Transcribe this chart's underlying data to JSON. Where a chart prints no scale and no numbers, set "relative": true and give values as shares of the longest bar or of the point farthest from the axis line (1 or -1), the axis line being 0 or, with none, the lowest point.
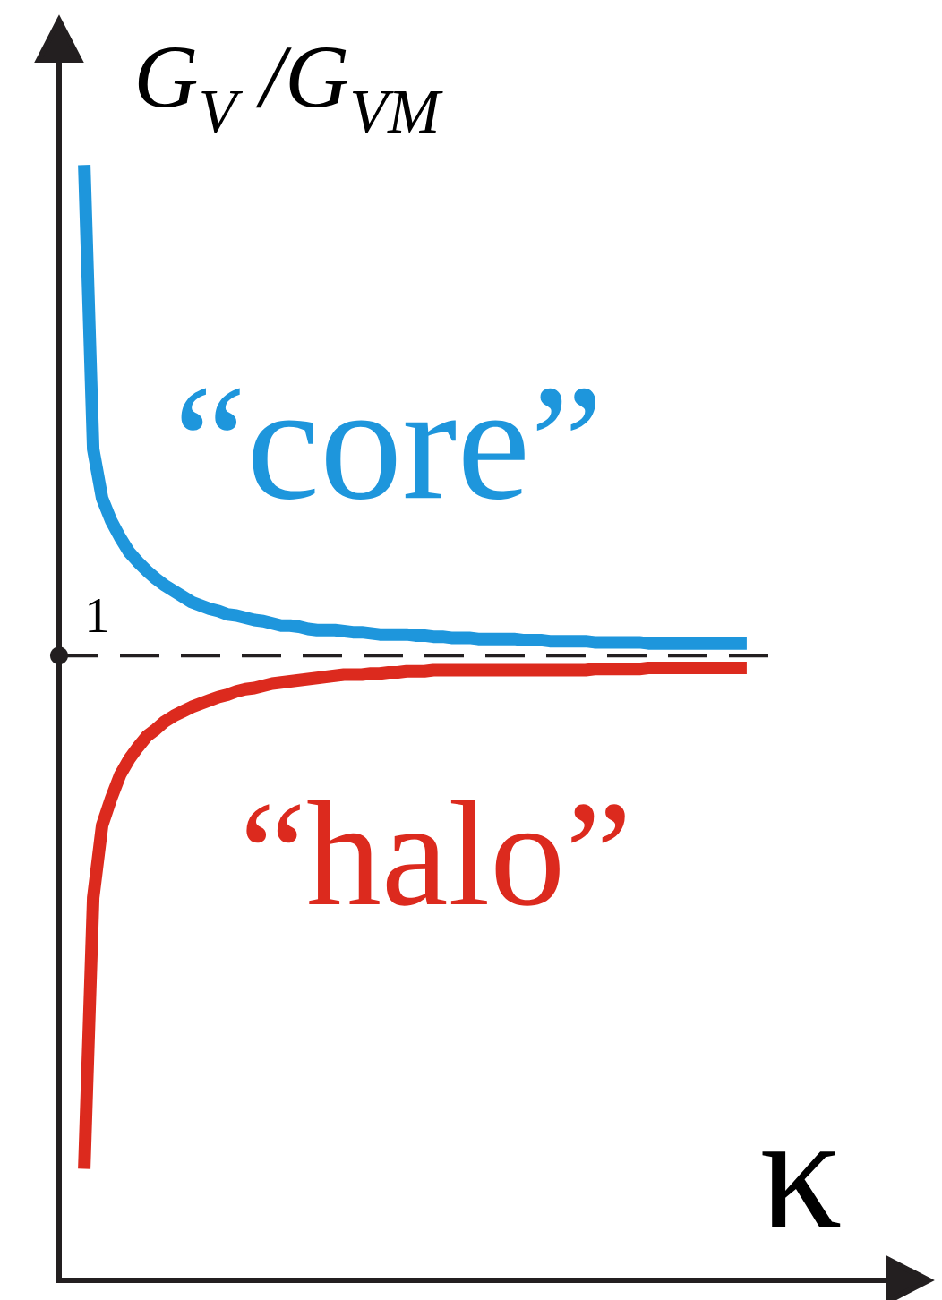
{
  "chart_data": {
    "type": "line",
    "relative": true,
    "ylabel": "G$_{V}$ /G$_{VM}$",
    "xlabel": "κ",
    "categories": [
      null,
      null,
      null,
      null,
      null,
      null,
      null,
      null,
      null,
      null,
      null,
      null,
      null,
      null,
      null,
      null,
      null,
      null,
      null,
      null,
      null,
      null,
      null,
      null,
      null,
      null,
      null,
      null,
      null,
      null,
      null,
      null,
      null,
      null,
      null,
      null,
      null,
      null,
      null,
      null,
      null,
      null,
      null,
      null,
      null,
      null,
      null,
      null,
      null,
      null,
      null,
      null,
      null,
      null,
      null,
      null,
      null,
      null,
      null,
      null,
      null,
      null,
      null,
      null,
      null,
      null,
      null,
      null,
      null,
      null,
      null,
      null,
      null,
      null,
      null
    ],
    "series": [
      {
        "name": "“core”",
        "color": "#1e96dc",
        "values": [
          1.0,
          0.745,
          0.701,
          0.681,
          0.666,
          0.653,
          0.644,
          0.636,
          0.629,
          0.623,
          0.618,
          0.613,
          0.608,
          0.605,
          0.602,
          0.6,
          0.597,
          0.596,
          0.594,
          0.592,
          0.591,
          0.589,
          0.587,
          0.587,
          0.586,
          0.584,
          0.583,
          0.583,
          0.583,
          0.582,
          0.581,
          0.581,
          0.58,
          0.579,
          0.579,
          0.579,
          0.579,
          0.578,
          0.578,
          0.577,
          0.577,
          0.576,
          0.576,
          0.576,
          0.575,
          0.575,
          0.575,
          0.575,
          0.575,
          0.574,
          0.574,
          0.574,
          0.573,
          0.573,
          0.573,
          0.573,
          0.573,
          0.572,
          0.572,
          0.572,
          0.572,
          0.572,
          0.572,
          0.571,
          0.571,
          0.571,
          0.571,
          0.571,
          0.571,
          0.571,
          0.571,
          0.571,
          0.571,
          0.571,
          0.571
        ]
      },
      {
        "name": "“halo”",
        "color": "#dc2a1e",
        "values": [
          0.1,
          0.343,
          0.408,
          0.432,
          0.453,
          0.467,
          0.478,
          0.488,
          0.494,
          0.501,
          0.506,
          0.51,
          0.514,
          0.517,
          0.52,
          0.523,
          0.525,
          0.528,
          0.53,
          0.531,
          0.533,
          0.535,
          0.536,
          0.537,
          0.538,
          0.539,
          0.54,
          0.541,
          0.542,
          0.543,
          0.543,
          0.543,
          0.544,
          0.544,
          0.545,
          0.545,
          0.546,
          0.546,
          0.546,
          0.547,
          0.547,
          0.547,
          0.547,
          0.547,
          0.547,
          0.547,
          0.547,
          0.547,
          0.547,
          0.547,
          0.547,
          0.547,
          0.547,
          0.547,
          0.547,
          0.547,
          0.547,
          0.548,
          0.548,
          0.548,
          0.548,
          0.548,
          0.548,
          0.549,
          0.549,
          0.549,
          0.549,
          0.549,
          0.549,
          0.549,
          0.549,
          0.549,
          0.549,
          0.549,
          0.549
        ]
      }
    ],
    "ref_lines": [
      {
        "axis": "y",
        "value": 0.56,
        "label": "1",
        "line_style": "dashed",
        "color": "#231f20"
      }
    ]
  }
}
